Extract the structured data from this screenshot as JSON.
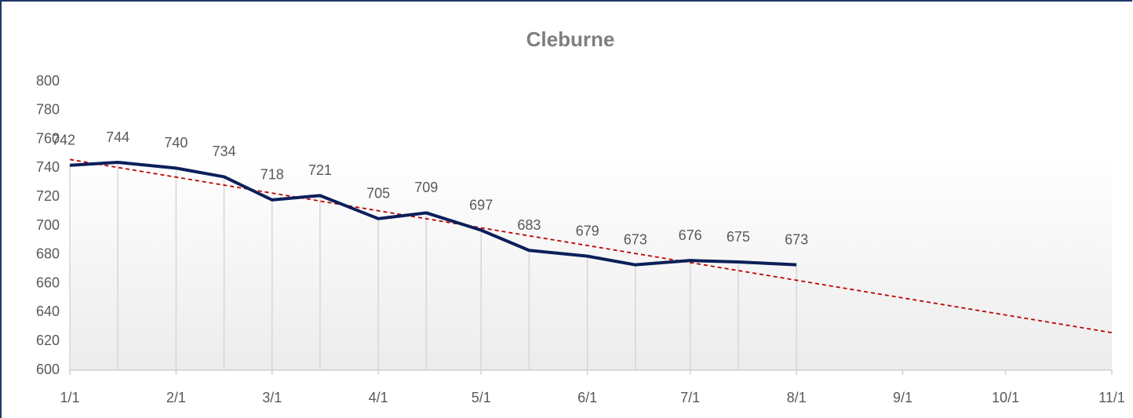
{
  "chart_data": {
    "type": "line",
    "title": "Cleburne",
    "x": [
      "1/1",
      "1/15",
      "2/1",
      "2/15",
      "3/1",
      "3/15",
      "4/1",
      "4/15",
      "5/1",
      "5/15",
      "6/1",
      "6/15",
      "7/1",
      "7/15",
      "8/1"
    ],
    "series": [
      {
        "color": "#0c1f5a",
        "values": [
          742,
          744,
          740,
          734,
          718,
          721,
          705,
          709,
          697,
          683,
          679,
          673,
          676,
          675,
          673
        ]
      }
    ],
    "trendline": {
      "x": [
        "1/1",
        "11/1"
      ],
      "values": [
        746,
        626
      ],
      "color": "#c00000"
    },
    "xlim": [
      "1/1",
      "11/1"
    ],
    "xticks": [
      "1/1",
      "2/1",
      "3/1",
      "4/1",
      "5/1",
      "6/1",
      "7/1",
      "8/1",
      "9/1",
      "10/1",
      "11/1"
    ],
    "ylim": [
      600,
      800
    ],
    "yticks": [
      600,
      620,
      640,
      660,
      680,
      700,
      720,
      740,
      760,
      780,
      800
    ],
    "drop_lines": true
  }
}
